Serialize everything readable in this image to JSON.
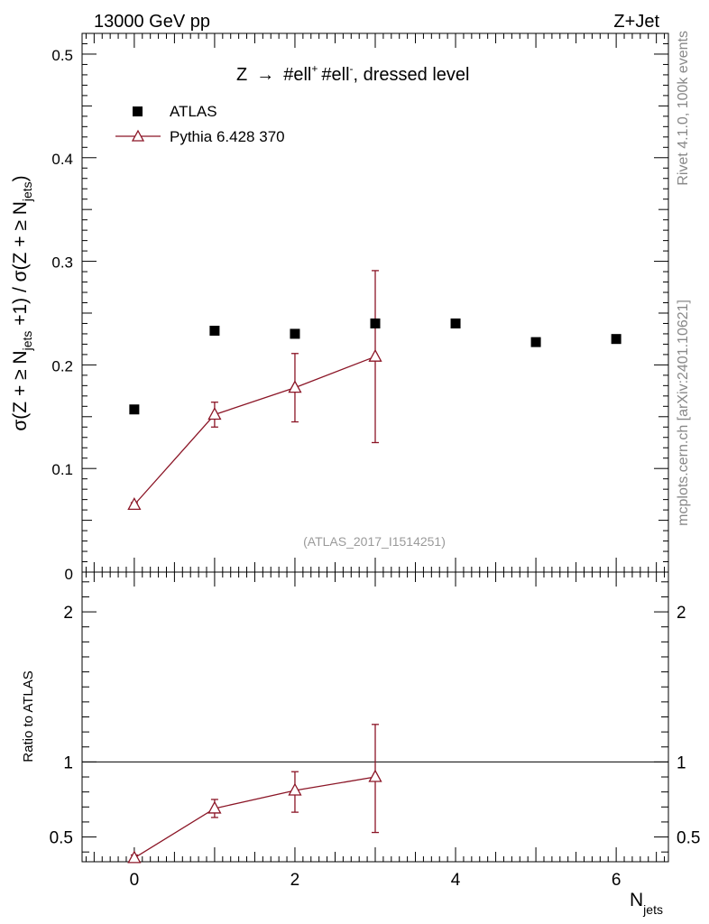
{
  "header": {
    "left": "13000 GeV pp",
    "right": "Z+Jet"
  },
  "side_labels": {
    "rivet": "Rivet 4.1.0,  100k events",
    "mcplots": "mcplots.cern.ch [arXiv:2401.10621]"
  },
  "watermark": "(ATLAS_2017_I1514251)",
  "chart_data": [
    {
      "id": "main",
      "type": "scatter",
      "title": "Z → #ell⁺ #ell⁻, dressed level",
      "title_parts": {
        "z": "Z",
        "arrow": "→",
        "l1": "#ell",
        "sup1": "+",
        "l2": "#ell",
        "sup2": "-",
        "rest": ", dressed level"
      },
      "ylabel": "σ(Z + ≥ N_jets +1) / σ(Z + ≥ N_jets)",
      "ylabel_parts": {
        "a": "σ(Z + ≥ N",
        "sub1": "jets",
        "b": " +1) / σ(Z + ≥ N",
        "sub2": "jets",
        "c": ")"
      },
      "xlim": [
        -0.65,
        6.65
      ],
      "ylim": [
        0,
        0.52
      ],
      "yticks": [
        0.1,
        0.2,
        0.3,
        0.4,
        0.5
      ],
      "ytick_labels": [
        "0.1",
        "0.2",
        "0.3",
        "0.4",
        "0.5"
      ],
      "zero_label": "0",
      "legend": {
        "position": "top-left",
        "entries": [
          "ATLAS",
          "Pythia 6.428 370"
        ]
      },
      "series": [
        {
          "name": "ATLAS",
          "marker": "square",
          "x": [
            0,
            1,
            2,
            3,
            4,
            5,
            6
          ],
          "y": [
            0.157,
            0.233,
            0.23,
            0.24,
            0.24,
            0.222,
            0.225
          ]
        },
        {
          "name": "Pythia 6.428 370",
          "marker": "open-triangle",
          "x": [
            0,
            1,
            2,
            3
          ],
          "y": [
            0.065,
            0.152,
            0.178,
            0.208
          ],
          "err_low": [
            0.002,
            0.012,
            0.033,
            0.083
          ],
          "err_high": [
            0.002,
            0.012,
            0.033,
            0.083
          ]
        }
      ]
    },
    {
      "id": "ratio",
      "type": "line",
      "ylabel": "Ratio to ATLAS",
      "xlabel": "N_jets",
      "xlabel_parts": {
        "main": "N",
        "sub": "jets"
      },
      "xlim": [
        -0.65,
        6.65
      ],
      "ylim": [
        0.335,
        2.265
      ],
      "xticks": [
        0,
        2,
        4,
        6
      ],
      "xtick_labels": [
        "0",
        "2",
        "4",
        "6"
      ],
      "yticks": [
        0.5,
        1,
        2
      ],
      "ytick_labels": [
        "0.5",
        "1",
        "2"
      ],
      "reference_line": 1,
      "series": [
        {
          "name": "Pythia 6.428 370",
          "marker": "open-triangle",
          "x": [
            0,
            1,
            2,
            3
          ],
          "y": [
            0.36,
            0.69,
            0.81,
            0.9
          ],
          "err_low": [
            0.02,
            0.06,
            0.145,
            0.37
          ],
          "err_high": [
            0.02,
            0.06,
            0.125,
            0.35
          ]
        }
      ]
    }
  ]
}
